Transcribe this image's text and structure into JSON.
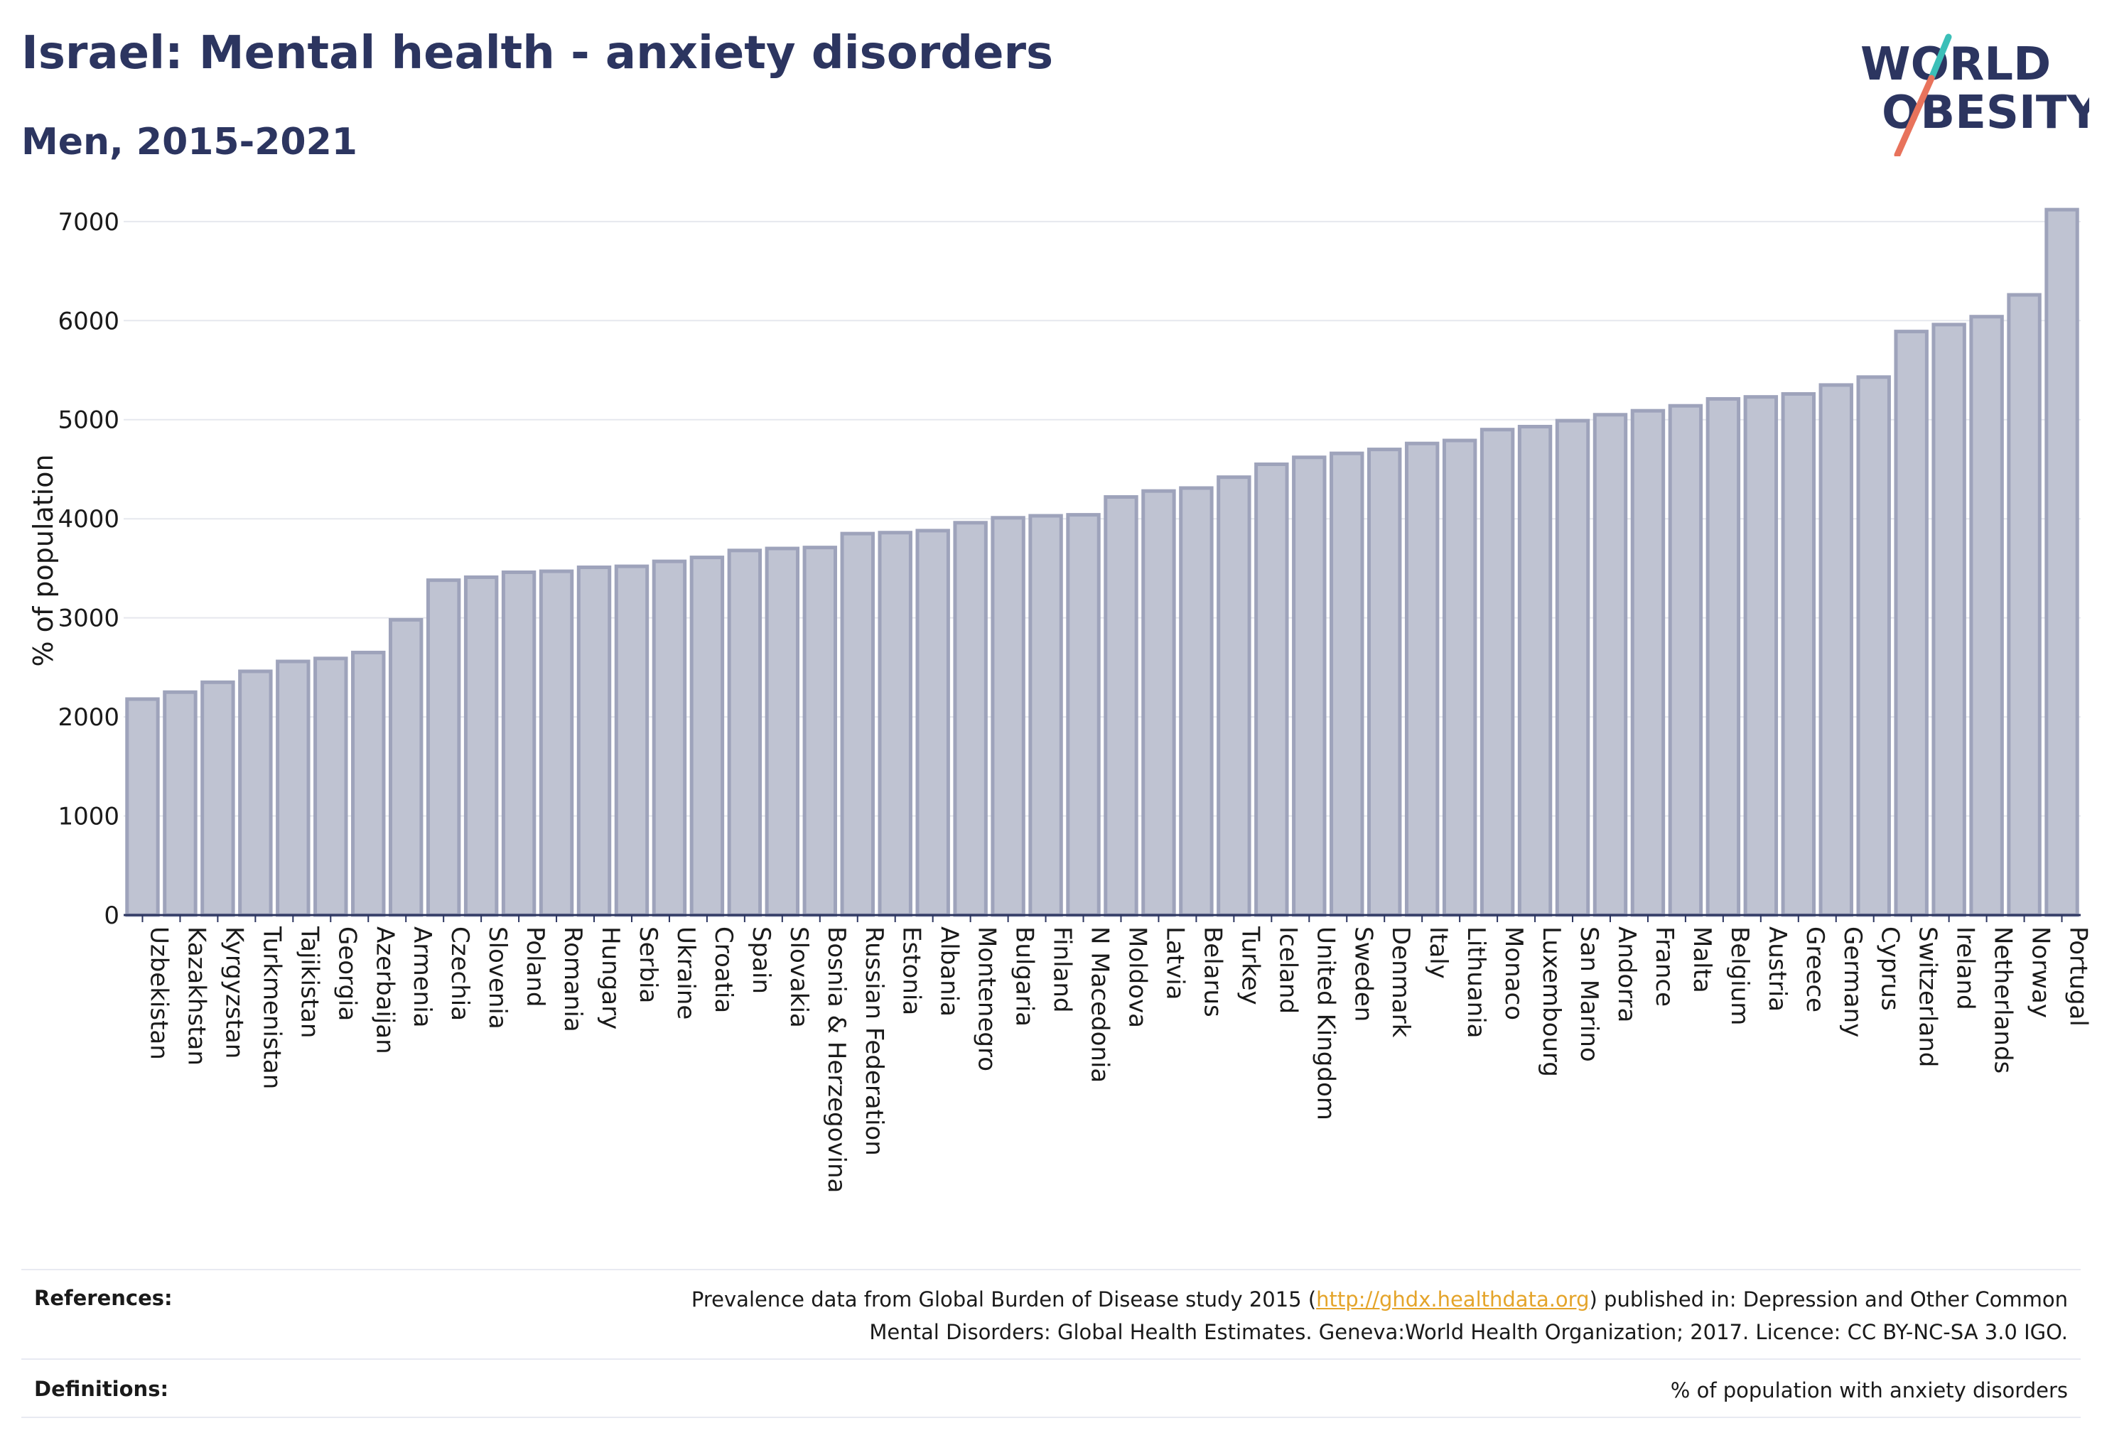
{
  "header": {
    "title": "Israel: Mental health - anxiety disorders",
    "subtitle": "Men, 2015-2021"
  },
  "logo": {
    "line1": "WORLD",
    "line2": "OBESITY",
    "colors": {
      "text": "#2c3560",
      "slash_top": "#3bbfb8",
      "slash_bottom": "#e8735c"
    }
  },
  "chart_data": {
    "type": "bar",
    "title": "",
    "xlabel": "",
    "ylabel": "% of population",
    "ylim": [
      0,
      7300
    ],
    "yticks": [
      0,
      1000,
      2000,
      3000,
      4000,
      5000,
      6000,
      7000
    ],
    "grid": true,
    "bar_color": "#bfc3d2",
    "bar_edge_color": "#9ea3bb",
    "categories": [
      "Uzbekistan",
      "Kazakhstan",
      "Kyrgyzstan",
      "Turkmenistan",
      "Tajikistan",
      "Georgia",
      "Azerbaijan",
      "Armenia",
      "Czechia",
      "Slovenia",
      "Poland",
      "Romania",
      "Hungary",
      "Serbia",
      "Ukraine",
      "Croatia",
      "Spain",
      "Slovakia",
      "Bosnia & Herzegovina",
      "Russian Federation",
      "Estonia",
      "Albania",
      "Montenegro",
      "Bulgaria",
      "Finland",
      "N Macedonia",
      "Moldova",
      "Latvia",
      "Belarus",
      "Turkey",
      "Iceland",
      "United Kingdom",
      "Sweden",
      "Denmark",
      "Italy",
      "Lithuania",
      "Monaco",
      "Luxembourg",
      "San Marino",
      "Andorra",
      "France",
      "Malta",
      "Belgium",
      "Austria",
      "Greece",
      "Germany",
      "Cyprus",
      "Switzerland",
      "Ireland",
      "Netherlands",
      "Norway",
      "Portugal"
    ],
    "values": [
      2180,
      2250,
      2350,
      2460,
      2560,
      2590,
      2650,
      2980,
      3380,
      3410,
      3460,
      3470,
      3510,
      3520,
      3570,
      3610,
      3680,
      3700,
      3710,
      3850,
      3860,
      3880,
      3960,
      4010,
      4030,
      4040,
      4220,
      4280,
      4310,
      4420,
      4550,
      4620,
      4660,
      4700,
      4760,
      4790,
      4900,
      4930,
      4990,
      5050,
      5090,
      5140,
      5210,
      5230,
      5260,
      5350,
      5430,
      5890,
      5960,
      6040,
      6260,
      7120
    ]
  },
  "footer": {
    "references_label": "References:",
    "references_text_before": "Prevalence data from Global Burden of Disease study 2015 (",
    "references_link": "http://ghdx.healthdata.org",
    "references_text_after": ") published in: Depression and Other Common",
    "references_line2": "Mental Disorders: Global Health Estimates. Geneva:World Health Organization; 2017. Licence: CC BY-NC-SA 3.0 IGO.",
    "definitions_label": "Definitions:",
    "definitions_text": "% of population with anxiety disorders"
  }
}
